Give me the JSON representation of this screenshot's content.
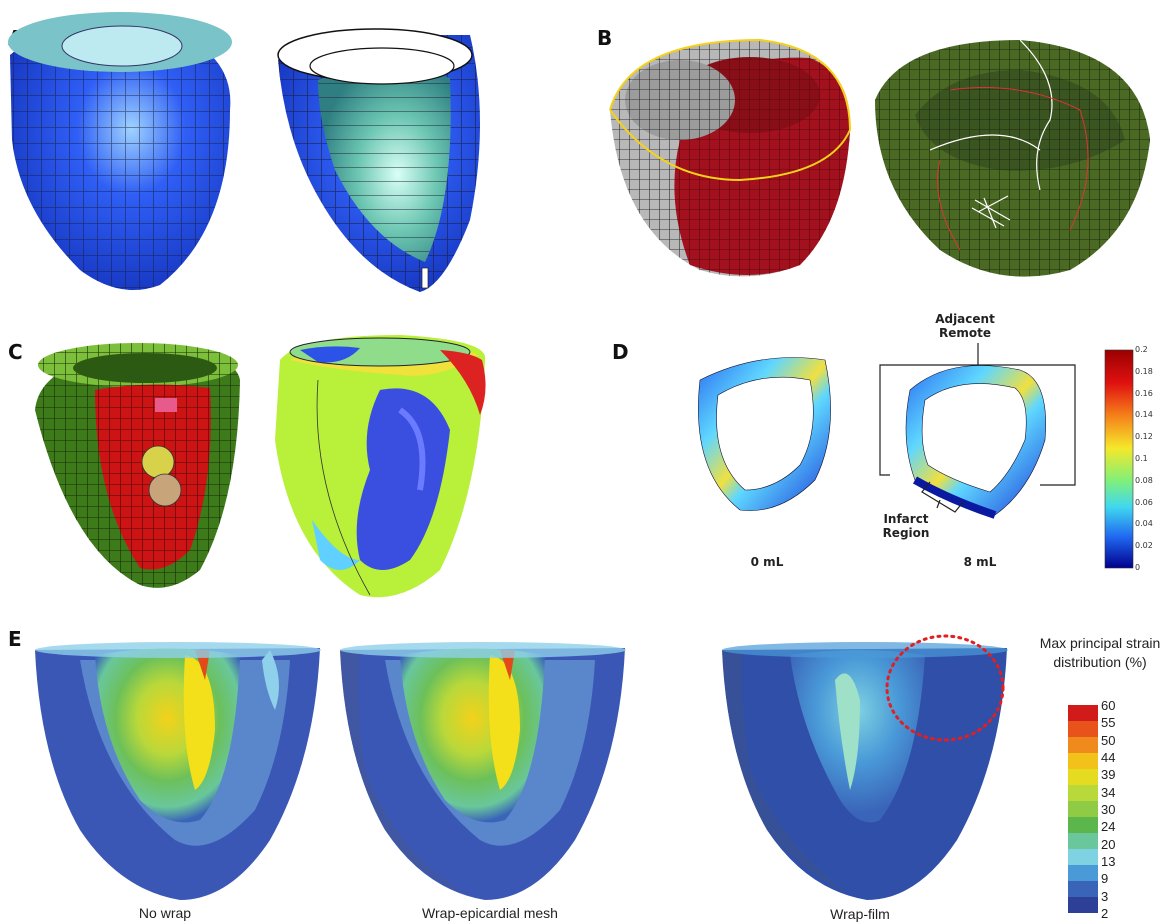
{
  "panels": {
    "a": {
      "label": "A"
    },
    "b": {
      "label": "B"
    },
    "c": {
      "label": "C"
    },
    "d": {
      "label": "D",
      "caption_left": "0 mL",
      "caption_right": "8 mL",
      "annotation_remote": "Adjacent Remote",
      "annotation_infarct": "Infarct Region",
      "colorbar_ticks": [
        "0.2",
        "0.18",
        "0.16",
        "0.14",
        "0.12",
        "0.1",
        "0.08",
        "0.06",
        "0.04",
        "0.02",
        "0"
      ]
    },
    "e": {
      "label": "E",
      "captions": [
        "No wrap",
        "Wrap-epicardial mesh",
        "Wrap-film"
      ],
      "legend_title": "Max principal strain distribution (%)",
      "legend_ticks": [
        "60",
        "55",
        "50",
        "44",
        "39",
        "34",
        "30",
        "24",
        "20",
        "13",
        "9",
        "3",
        "2"
      ],
      "legend_colors": [
        "#d11a1a",
        "#e8531c",
        "#f08a1c",
        "#f3c21a",
        "#e5dc22",
        "#b9d83a",
        "#8fcb44",
        "#5bb74c",
        "#69c79b",
        "#7fd2e1",
        "#4a9ad8",
        "#3a64b8",
        "#2d3f96"
      ]
    }
  }
}
